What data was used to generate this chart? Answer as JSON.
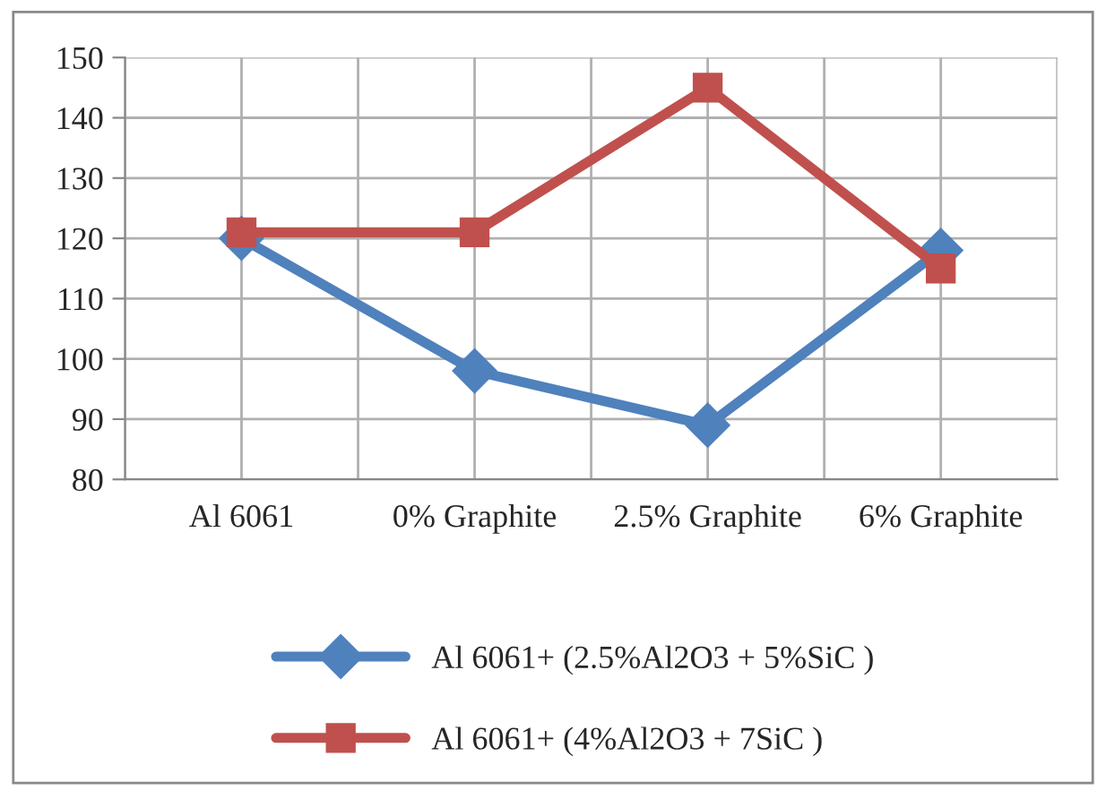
{
  "chart_data": {
    "type": "line",
    "categories": [
      "Al 6061",
      "0% Graphite",
      "2.5% Graphite",
      "6% Graphite"
    ],
    "series": [
      {
        "name": "Al 6061+ (2.5%Al2O3 + 5%SiC )",
        "color": "#4f81bd",
        "marker": "diamond",
        "values": [
          120,
          98,
          89,
          118
        ]
      },
      {
        "name": "Al 6061+ (4%Al2O3 + 7SiC )",
        "color": "#c0504d",
        "marker": "square",
        "values": [
          121,
          121,
          145,
          115
        ]
      }
    ],
    "ylim": [
      80,
      150
    ],
    "yticks": [
      80,
      90,
      100,
      110,
      120,
      130,
      140,
      150
    ],
    "grid": true,
    "legend": "bottom",
    "line_style": "solid"
  }
}
